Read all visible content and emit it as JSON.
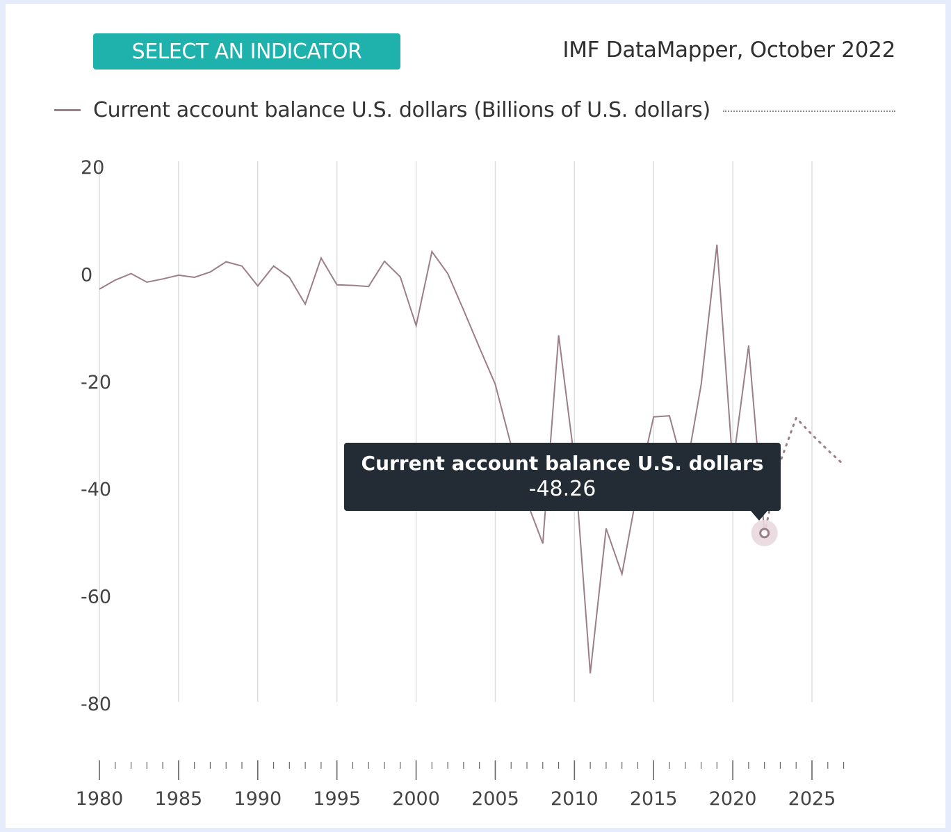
{
  "header": {
    "select_button": "SELECT AN INDICATOR",
    "source": "IMF DataMapper, October 2022"
  },
  "legend": {
    "label": "Current account balance U.S. dollars (Billions of U.S. dollars)"
  },
  "tooltip": {
    "title": "Current account balance U.S. dollars",
    "value": "-48.26"
  },
  "colors": {
    "accent": "#1fb2ad",
    "series": "#9c7e88",
    "tooltip_bg": "#232b35",
    "grid": "#dcdcdc"
  },
  "chart_data": {
    "type": "line",
    "title": "",
    "xlabel": "",
    "ylabel": "",
    "xlim": [
      1980,
      2027
    ],
    "ylim": [
      -80,
      20
    ],
    "x_ticks": [
      1980,
      1985,
      1990,
      1995,
      2000,
      2005,
      2010,
      2015,
      2020,
      2025
    ],
    "y_ticks": [
      20,
      0,
      -20,
      -40,
      -60,
      -80
    ],
    "grid": true,
    "legend_position": "top",
    "series": [
      {
        "name": "Current account balance U.S. dollars (Billions of U.S. dollars)",
        "color": "#9c7e88",
        "style": "solid",
        "points": [
          [
            1980,
            -2.8
          ],
          [
            1981,
            -1.1
          ],
          [
            1982,
            0.1
          ],
          [
            1983,
            -1.5
          ],
          [
            1984,
            -0.9
          ],
          [
            1985,
            -0.2
          ],
          [
            1986,
            -0.6
          ],
          [
            1987,
            0.4
          ],
          [
            1988,
            2.3
          ],
          [
            1989,
            1.5
          ],
          [
            1990,
            -2.2
          ],
          [
            1991,
            1.5
          ],
          [
            1992,
            -0.6
          ],
          [
            1993,
            -5.6
          ],
          [
            1994,
            3.0
          ],
          [
            1995,
            -2.0
          ],
          [
            1996,
            -2.1
          ],
          [
            1997,
            -2.3
          ],
          [
            1998,
            2.4
          ],
          [
            1999,
            -0.5
          ],
          [
            2000,
            -9.6
          ],
          [
            2001,
            4.2
          ],
          [
            2002,
            0.1
          ],
          [
            2003,
            -6.7
          ],
          [
            2004,
            -13.7
          ],
          [
            2005,
            -20.5
          ],
          [
            2006,
            -31.9
          ],
          [
            2007,
            -42.4
          ],
          [
            2008,
            -50.2
          ],
          [
            2009,
            -11.4
          ],
          [
            2010,
            -34.6
          ],
          [
            2011,
            -74.4
          ],
          [
            2012,
            -47.4
          ],
          [
            2013,
            -55.9
          ],
          [
            2014,
            -39.9
          ],
          [
            2015,
            -26.6
          ],
          [
            2016,
            -26.4
          ],
          [
            2017,
            -37.5
          ],
          [
            2018,
            -20.6
          ],
          [
            2019,
            5.5
          ],
          [
            2020,
            -35.7
          ],
          [
            2021,
            -13.3
          ],
          [
            2022,
            -48.26
          ]
        ]
      },
      {
        "name": "Current account balance U.S. dollars (Billions of U.S. dollars)",
        "color": "#9c7e88",
        "style": "dotted",
        "points": [
          [
            2022,
            -48.26
          ],
          [
            2023,
            -35.0
          ],
          [
            2024,
            -26.8
          ],
          [
            2025,
            -29.9
          ],
          [
            2026,
            -32.8
          ],
          [
            2027,
            -35.5
          ]
        ]
      }
    ],
    "highlight": {
      "x": 2022,
      "y": -48.26
    }
  }
}
